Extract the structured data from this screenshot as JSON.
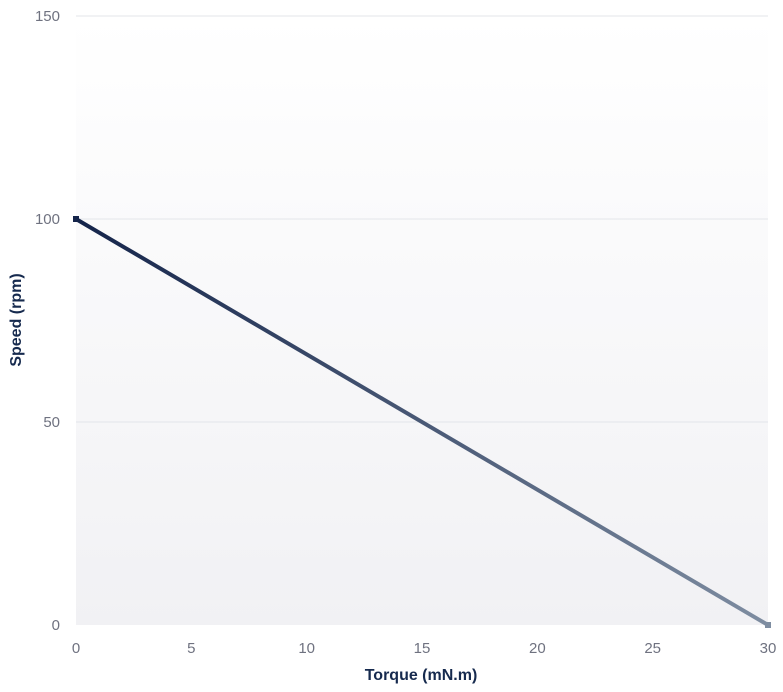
{
  "chart_data": {
    "type": "line",
    "title": "",
    "xlabel": "Torque (mN.m)",
    "ylabel": "Speed (rpm)",
    "xlim": [
      0,
      30
    ],
    "ylim": [
      0,
      150
    ],
    "x_ticks": [
      "0",
      "5",
      "10",
      "15",
      "20",
      "25",
      "30"
    ],
    "y_ticks": [
      "0",
      "50",
      "100",
      "150"
    ],
    "grid": "horizontal",
    "series": [
      {
        "x": [
          0,
          30
        ],
        "y": [
          100,
          0
        ],
        "color_start": "#14244a",
        "color_end": "#7e8da1"
      }
    ]
  }
}
